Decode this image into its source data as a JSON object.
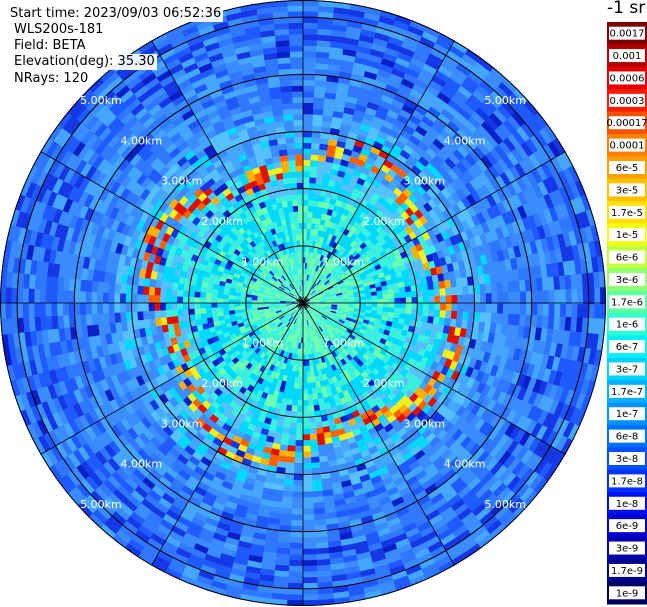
{
  "info": {
    "start_time": "Start time: 2023/09/03 06:52:36",
    "instrument": "WLS200s-181",
    "field": "Field: BETA",
    "elevation": "Elevation(deg): 35.30",
    "nrays": "NRays: 120"
  },
  "colorbar": {
    "unit_label": "-1 sr",
    "labels": [
      "0.0017",
      "0.001",
      "0.0006",
      "0.0003",
      "0.00017",
      "0.0001",
      "6e-5",
      "3e-5",
      "1.7e-5",
      "1e-5",
      "6e-6",
      "3e-6",
      "1.7e-6",
      "1e-6",
      "6e-7",
      "3e-7",
      "1.7e-7",
      "1e-7",
      "6e-8",
      "3e-8",
      "1.7e-8",
      "1e-8",
      "6e-9",
      "3e-9",
      "1.7e-9",
      "1e-9"
    ],
    "colors": [
      "#7f0000",
      "#b00000",
      "#e00000",
      "#ff1a00",
      "#ff5000",
      "#ff8000",
      "#ffa000",
      "#ffc000",
      "#ffe000",
      "#f0ff10",
      "#c0ff40",
      "#90ff70",
      "#60ffa0",
      "#30ffd0",
      "#00f0ff",
      "#00d0ff",
      "#00b0ff",
      "#0090ff",
      "#0070ff",
      "#0050ff",
      "#0030ff",
      "#0010f0",
      "#0000d0",
      "#0000b0",
      "#000090",
      "#000060"
    ]
  },
  "chart_data": {
    "type": "heatmap",
    "projection": "polar",
    "range_rings_km": [
      1,
      2,
      3,
      4,
      5
    ],
    "range_labels": [
      "1.00km",
      "2.00km",
      "3.00km",
      "4.00km",
      "5.00km"
    ],
    "max_range_km": 5.3,
    "radials": 12,
    "n_rays": 120
  }
}
